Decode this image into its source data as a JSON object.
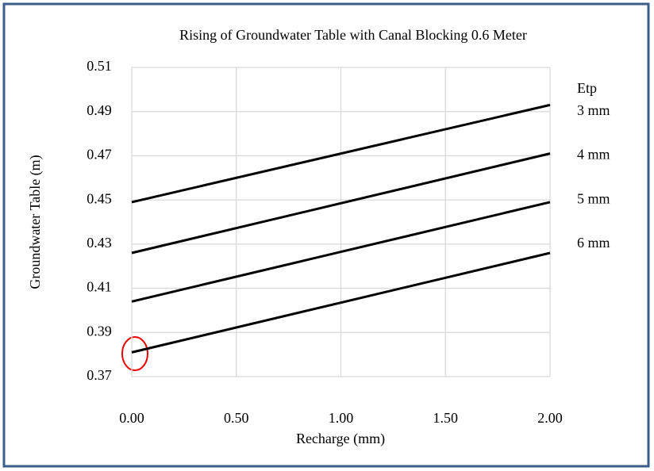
{
  "chart_data": {
    "type": "line",
    "title": "Rising of Groundwater Table with Canal Blocking 0.6 Meter",
    "x_label": "Recharge (mm)",
    "y_label": "Groundwater Table (m)",
    "legend_title": "Etp",
    "x": [
      0,
      2
    ],
    "series": [
      {
        "name": "3 mm",
        "color": "#000000",
        "values": [
          0.449,
          0.493
        ]
      },
      {
        "name": "4 mm",
        "color": "#000000",
        "values": [
          0.426,
          0.471
        ]
      },
      {
        "name": "5 mm",
        "color": "#000000",
        "values": [
          0.404,
          0.449
        ]
      },
      {
        "name": "6 mm",
        "color": "#000000",
        "values": [
          0.381,
          0.426
        ]
      }
    ],
    "xlim": [
      0,
      2
    ],
    "xticks": [
      {
        "value": 0,
        "label": "0.00"
      },
      {
        "value": 0.5,
        "label": "0.50"
      },
      {
        "value": 1,
        "label": "1.00"
      },
      {
        "value": 1.5,
        "label": "1.50"
      },
      {
        "value": 2,
        "label": "2.00"
      }
    ],
    "ylim": [
      0.37,
      0.51
    ],
    "yticks": [
      0.37,
      0.39,
      0.41,
      0.43,
      0.45,
      0.47,
      0.49,
      0.51
    ],
    "grid": true
  }
}
